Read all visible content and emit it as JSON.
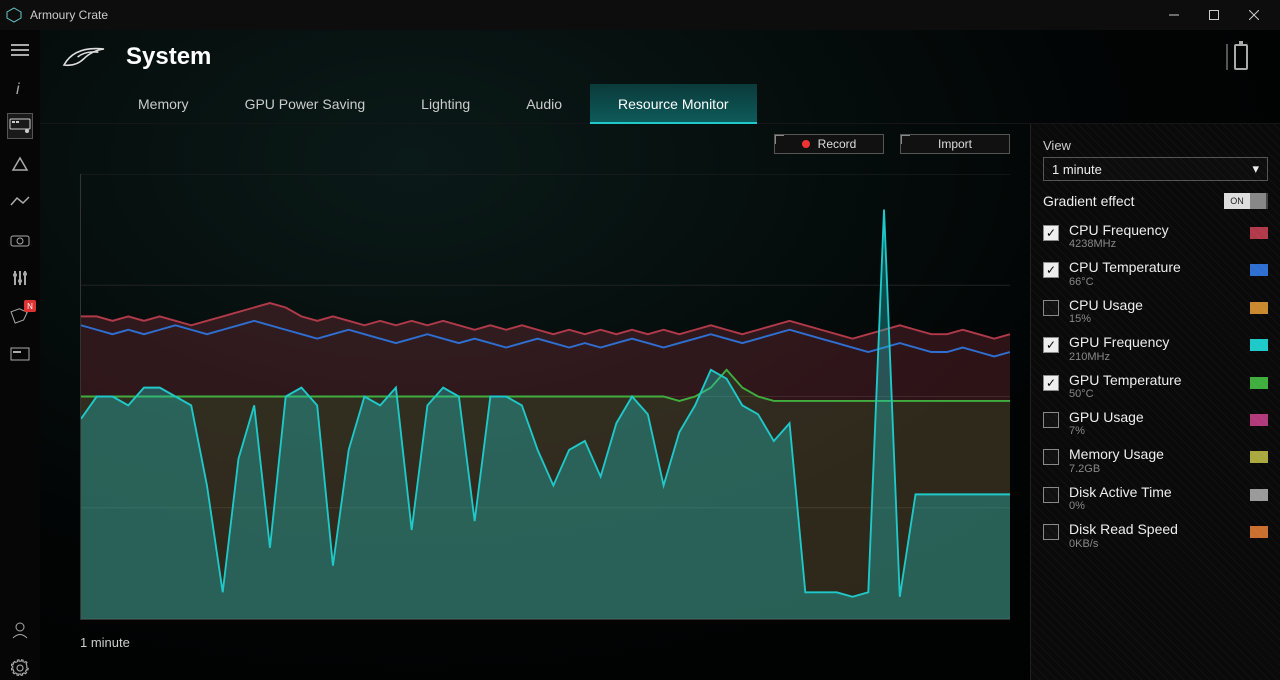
{
  "app": {
    "title": "Armoury Crate"
  },
  "page": {
    "title": "System"
  },
  "tabs": [
    {
      "label": "Memory",
      "active": false
    },
    {
      "label": "GPU Power Saving",
      "active": false
    },
    {
      "label": "Lighting",
      "active": false
    },
    {
      "label": "Audio",
      "active": false
    },
    {
      "label": "Resource Monitor",
      "active": true
    }
  ],
  "toolbar": {
    "record": "Record",
    "import": "Import"
  },
  "chart": {
    "type": "area",
    "xaxis_label": "1 minute",
    "xlim": [
      0,
      59
    ],
    "ylim": [
      0,
      100
    ],
    "grid_lines_y": [
      0,
      25,
      50,
      75,
      100
    ],
    "background": "transparent",
    "grid_color": "#222222",
    "series": {
      "cpu_freq": {
        "color": "#b13a4a",
        "fill_opacity": 0.25,
        "checked": true,
        "values": [
          68,
          68,
          67,
          68,
          67,
          68,
          67,
          66,
          67,
          68,
          69,
          70,
          71,
          70,
          68,
          67,
          68,
          67,
          66,
          67,
          66,
          67,
          66,
          67,
          66,
          65,
          66,
          65,
          66,
          65,
          64,
          65,
          64,
          65,
          64,
          65,
          64,
          65,
          64,
          65,
          66,
          65,
          64,
          65,
          66,
          67,
          66,
          65,
          64,
          63,
          64,
          65,
          66,
          65,
          64,
          64,
          65,
          64,
          63,
          64
        ]
      },
      "cpu_temp": {
        "color": "#2f6fd1",
        "fill_opacity": 0.0,
        "checked": true,
        "values": [
          66,
          65,
          64,
          65,
          64,
          65,
          66,
          65,
          64,
          65,
          66,
          67,
          66,
          65,
          64,
          63,
          64,
          65,
          64,
          63,
          62,
          63,
          64,
          63,
          62,
          63,
          62,
          61,
          62,
          63,
          62,
          61,
          62,
          61,
          62,
          63,
          62,
          61,
          62,
          63,
          64,
          63,
          62,
          63,
          64,
          65,
          64,
          63,
          62,
          61,
          60,
          61,
          62,
          61,
          60,
          60,
          61,
          60,
          59,
          60
        ]
      },
      "gpu_temp": {
        "color": "#3fae3f",
        "fill_opacity": 0.15,
        "checked": true,
        "values": [
          50,
          50,
          50,
          50,
          50,
          50,
          50,
          50,
          50,
          50,
          50,
          50,
          50,
          50,
          50,
          50,
          50,
          50,
          50,
          50,
          50,
          50,
          50,
          50,
          50,
          50,
          50,
          50,
          50,
          50,
          50,
          50,
          50,
          50,
          50,
          50,
          50,
          50,
          49,
          50,
          52,
          56,
          52,
          50,
          49,
          49,
          49,
          49,
          49,
          49,
          49,
          49,
          49,
          49,
          49,
          49,
          49,
          49,
          49,
          49
        ]
      },
      "gpu_freq": {
        "color": "#1fc9c9",
        "fill_opacity": 0.35,
        "checked": true,
        "values": [
          45,
          50,
          50,
          48,
          52,
          52,
          50,
          48,
          30,
          6,
          36,
          48,
          16,
          50,
          52,
          48,
          12,
          38,
          50,
          48,
          52,
          20,
          48,
          52,
          50,
          22,
          50,
          50,
          48,
          38,
          30,
          38,
          40,
          32,
          44,
          50,
          46,
          30,
          42,
          48,
          56,
          54,
          48,
          46,
          40,
          44,
          6,
          6,
          6,
          5,
          6,
          92,
          5,
          28,
          28,
          28,
          28,
          28,
          28,
          28
        ]
      }
    }
  },
  "sidepanel": {
    "settings_tab": "Settings",
    "view_label": "View",
    "view_value": "1 minute",
    "gradient_label": "Gradient effect",
    "gradient_on": "ON",
    "metrics": [
      {
        "name": "CPU Frequency",
        "value": "4238MHz",
        "color": "#b13a4a",
        "checked": true
      },
      {
        "name": "CPU Temperature",
        "value": "66°C",
        "color": "#2f6fd1",
        "checked": true
      },
      {
        "name": "CPU Usage",
        "value": "15%",
        "color": "#c98a2f",
        "checked": false
      },
      {
        "name": "GPU Frequency",
        "value": "210MHz",
        "color": "#1fc9c9",
        "checked": true
      },
      {
        "name": "GPU Temperature",
        "value": "50°C",
        "color": "#3fae3f",
        "checked": true
      },
      {
        "name": "GPU Usage",
        "value": "7%",
        "color": "#b13a7a",
        "checked": false
      },
      {
        "name": "Memory Usage",
        "value": "7.2GB",
        "color": "#a9a93f",
        "checked": false
      },
      {
        "name": "Disk Active Time",
        "value": "0%",
        "color": "#9a9a9a",
        "checked": false
      },
      {
        "name": "Disk Read Speed",
        "value": "0KB/s",
        "color": "#c9702f",
        "checked": false
      }
    ]
  }
}
